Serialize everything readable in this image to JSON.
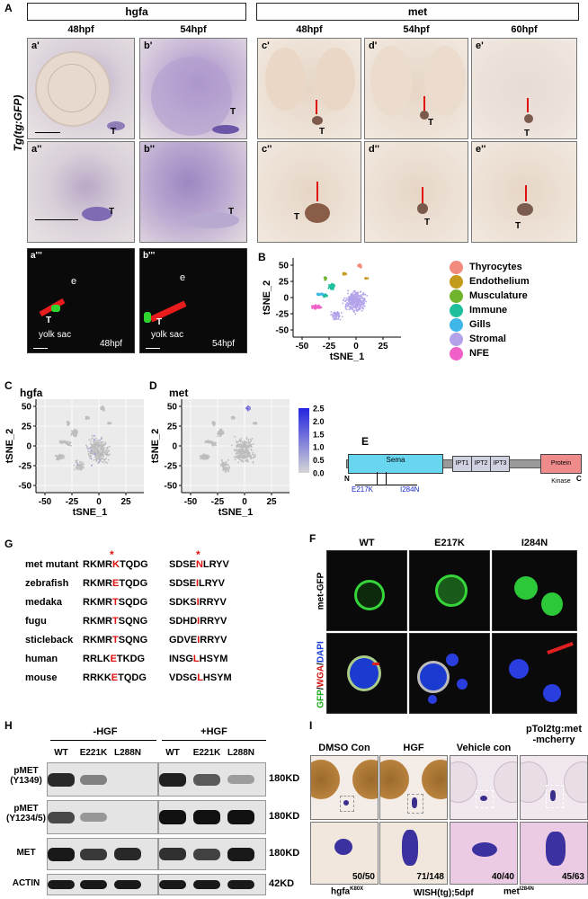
{
  "panel_labels": {
    "A": "A",
    "B": "B",
    "C": "C",
    "D": "D",
    "E": "E",
    "F": "F",
    "G": "G",
    "H": "H",
    "I": "I"
  },
  "panelA": {
    "hgfa_header": "hgfa",
    "met_header": "met",
    "tp_48": "48hpf",
    "tp_54": "54hpf",
    "tp_60": "60hpf",
    "ylabel": "Tg(tg:GFP)",
    "sub": {
      "a1": "a'",
      "b1": "b'",
      "c1": "c'",
      "d1": "d'",
      "e1": "e'",
      "a2": "a''",
      "b2": "b''",
      "c2": "c''",
      "d2": "d''",
      "e2": "e''",
      "a3": "a'''",
      "b3": "b'''"
    },
    "t": "T",
    "e": "e",
    "yolk": "yolk sac",
    "fl48": "48hpf",
    "fl54": "54hpf"
  },
  "panelB": {
    "yaxis_title": "tSNE_2",
    "xaxis_title": "tSNE_1",
    "yticks": [
      "50",
      "25",
      "0",
      "-25",
      "-50"
    ],
    "xticks": [
      "-50",
      "-25",
      "0",
      "25"
    ],
    "legend": [
      {
        "label": "Thyrocytes",
        "color": "#f28a7e"
      },
      {
        "label": "Endothelium",
        "color": "#c49a1a"
      },
      {
        "label": "Musculature",
        "color": "#6fb42c"
      },
      {
        "label": "Immune",
        "color": "#1fbf9c"
      },
      {
        "label": "Gills",
        "color": "#3fb6e8"
      },
      {
        "label": "Stromal",
        "color": "#b3a2ea"
      },
      {
        "label": "NFE",
        "color": "#f060c8"
      }
    ]
  },
  "panelC": {
    "title": "hgfa",
    "yaxis_title": "tSNE_2",
    "xaxis_title": "tSNE_1",
    "yticks": [
      "50",
      "25",
      "0",
      "-25",
      "-50"
    ],
    "xticks": [
      "-50",
      "-25",
      "0",
      "25"
    ]
  },
  "panelD": {
    "title": "met",
    "yaxis_title": "tSNE_2",
    "xaxis_title": "tSNE_1",
    "yticks": [
      "50",
      "25",
      "0",
      "-25",
      "-50"
    ],
    "xticks": [
      "-50",
      "-25",
      "0",
      "25"
    ],
    "colorbar": [
      "2.5",
      "2.0",
      "1.5",
      "1.0",
      "0.5",
      "0.0"
    ]
  },
  "panelE": {
    "n": "N",
    "c": "C",
    "sema": "Sema",
    "ipt1": "IPT1",
    "ipt2": "IPT2",
    "ipt3": "IPT3",
    "kinase": "Protein Kinase",
    "mut1": "E217K",
    "mut2": "I284N"
  },
  "panelF": {
    "cols": [
      "WT",
      "E217K",
      "I284N"
    ],
    "row1": "met-GFP",
    "row2_gfp": "GFP",
    "row2_wga": "WGA",
    "row2_dapi": "DAPI",
    "sep": "/"
  },
  "panelG": {
    "star": "*",
    "rows": [
      {
        "name": "met mutant",
        "a1": "RKMR",
        "m1": "K",
        "b1": "TQDG",
        "a2": "SDSE",
        "m2": "N",
        "b2": "LRYV"
      },
      {
        "name": "zebrafish",
        "a1": "RKMR",
        "m1": "E",
        "b1": "TQDG",
        "a2": "SDSE",
        "m2": "I",
        "b2": "LRYV"
      },
      {
        "name": "medaka",
        "a1": "RKMR",
        "m1": "T",
        "b1": "SQDG",
        "a2": "SDKS",
        "m2": "I",
        "b2": "RRYV"
      },
      {
        "name": "fugu",
        "a1": "RKMR",
        "m1": "T",
        "b1": "SQNG",
        "a2": "SDHD",
        "m2": "I",
        "b2": "RRYV"
      },
      {
        "name": "sticleback",
        "a1": "RKMR",
        "m1": "T",
        "b1": "SQNG",
        "a2": "GDVE",
        "m2": "I",
        "b2": "RRYV"
      },
      {
        "name": "human",
        "a1": "RRLK",
        "m1": "E",
        "b1": "TKDG",
        "a2": "INSG",
        "m2": "L",
        "b2": "HSYM"
      },
      {
        "name": "mouse",
        "a1": "RRKK",
        "m1": "E",
        "b1": "TQDG",
        "a2": "VDSG",
        "m2": "L",
        "b2": "HSYM"
      }
    ]
  },
  "panelH": {
    "minus_hgf": "-HGF",
    "plus_hgf": "+HGF",
    "lanes": [
      "WT",
      "E221K",
      "L288N",
      "WT",
      "E221K",
      "L288N"
    ],
    "rows": [
      {
        "label": "pMET",
        "label2": "(Y1349)",
        "size": "180KD",
        "intensity": [
          0.85,
          0.3,
          0.02,
          0.9,
          0.55,
          0.12
        ]
      },
      {
        "label": "pMET",
        "label2": "(Y1234/5)",
        "size": "180KD",
        "intensity": [
          0.65,
          0.15,
          0.03,
          1.0,
          1.0,
          1.0
        ]
      },
      {
        "label": "MET",
        "label2": "",
        "size": "180KD",
        "intensity": [
          0.95,
          0.75,
          0.85,
          0.8,
          0.7,
          0.95
        ]
      },
      {
        "label": "ACTIN",
        "label2": "",
        "size": "42KD",
        "intensity": [
          0.95,
          0.95,
          0.95,
          0.95,
          0.95,
          0.95
        ]
      }
    ]
  },
  "panelI": {
    "col1": "DMSO Con",
    "col2": "HGF",
    "col3": "Vehicle con",
    "col4_1": "pTol2tg:met",
    "col4_2": "-mcherry",
    "count1": "50/50",
    "count2": "71/148",
    "count3": "40/40",
    "count4": "45/63",
    "foot1": "hgfa",
    "foot1_sup": "K80X",
    "foot2": "WISH(tg);5dpf",
    "foot3": "met",
    "foot3_sup": "I284N"
  }
}
